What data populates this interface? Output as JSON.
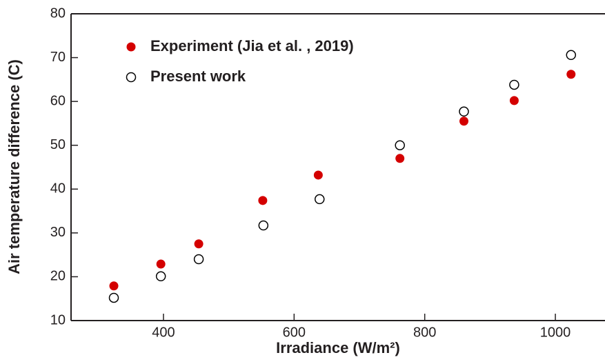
{
  "chart_data": {
    "type": "scatter",
    "xlabel": "Irradiance (W/m²)",
    "ylabel": "Air temperature difference (C)",
    "xlim": [
      258.5,
      1076
    ],
    "xticks": [
      400,
      600,
      800,
      1000
    ],
    "ylim": [
      10,
      80
    ],
    "yticks": [
      10,
      20,
      30,
      40,
      50,
      60,
      70,
      80
    ],
    "series": [
      {
        "name": "Experiment (Jia et al. , 2019)",
        "color": "#d40000",
        "marker": "filled",
        "x": [
          324,
          396,
          454,
          552,
          637,
          762,
          860,
          937,
          1024
        ],
        "values": [
          17.9,
          22.9,
          27.5,
          37.4,
          43.2,
          47.0,
          55.5,
          60.2,
          66.2
        ]
      },
      {
        "name": "Present work",
        "color": "#000000",
        "marker": "open",
        "x": [
          324,
          396,
          454,
          553,
          639,
          762,
          860,
          937,
          1024
        ],
        "values": [
          15.2,
          20.1,
          24.0,
          31.7,
          37.7,
          50.0,
          57.7,
          63.8,
          70.6
        ]
      }
    ]
  }
}
